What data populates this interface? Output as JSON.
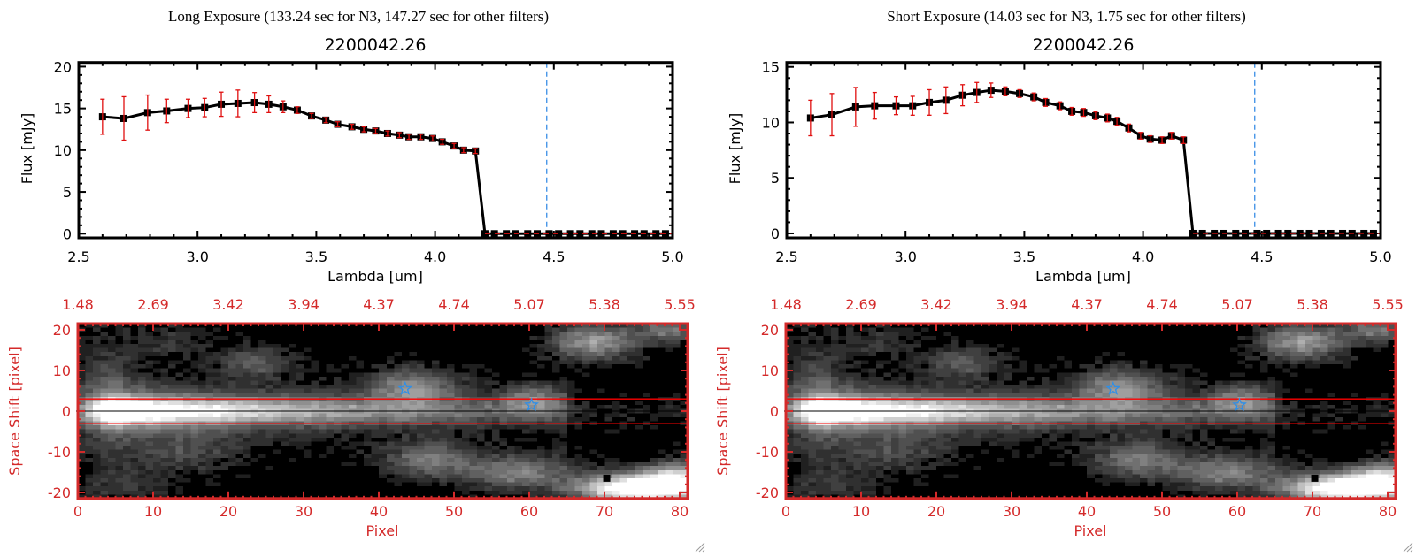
{
  "chart_data": [
    {
      "type": "line",
      "title": "Long Exposure (133.24 sec for N3, 147.27 sec for other filters)",
      "subtitle": "2200042.26",
      "xlabel": "Lambda [um]",
      "ylabel": "Flux [mJy]",
      "xlim": [
        2.5,
        5.0
      ],
      "ylim": [
        -0.5,
        20.5
      ],
      "x_ticks": [
        "2.5",
        "3.0",
        "3.5",
        "4.0",
        "4.5",
        "5.0"
      ],
      "y_ticks": [
        "0",
        "5",
        "10",
        "15",
        "20"
      ],
      "x": [
        2.6,
        2.69,
        2.79,
        2.87,
        2.96,
        3.03,
        3.1,
        3.17,
        3.24,
        3.3,
        3.36,
        3.42,
        3.48,
        3.54,
        3.59,
        3.65,
        3.7,
        3.75,
        3.8,
        3.85,
        3.89,
        3.94,
        3.99,
        4.03,
        4.08,
        4.12,
        4.17,
        4.21,
        4.25,
        4.3,
        4.34,
        4.39,
        4.43,
        4.48,
        4.52,
        4.57,
        4.61,
        4.66,
        4.7,
        4.75,
        4.79,
        4.84,
        4.88,
        4.93,
        4.97
      ],
      "series": [
        {
          "values": [
            14.0,
            13.8,
            14.5,
            14.7,
            15.0,
            15.1,
            15.5,
            15.6,
            15.7,
            15.5,
            15.2,
            14.8,
            14.1,
            13.6,
            13.1,
            12.8,
            12.5,
            12.3,
            12.0,
            11.8,
            11.6,
            11.6,
            11.4,
            11.0,
            10.5,
            10.0,
            9.9,
            0,
            0,
            0,
            0,
            0,
            0,
            0,
            0,
            0,
            0,
            0,
            0,
            0,
            0,
            0,
            0,
            0,
            0
          ],
          "errors": [
            2.1,
            2.6,
            2.1,
            1.4,
            1.1,
            1.1,
            1.45,
            1.6,
            1.2,
            1.0,
            0.7,
            0.4,
            0.3,
            0.3,
            0.3,
            0.3,
            0.3,
            0.3,
            0.3,
            0.3,
            0.3,
            0.3,
            0.3,
            0.3,
            0.3,
            0.3,
            0.3,
            0,
            0,
            0,
            0,
            0,
            0,
            0,
            0,
            0,
            0,
            0,
            0,
            0,
            0,
            0,
            0,
            0,
            0
          ]
        }
      ],
      "vline": 4.47,
      "hline": 0,
      "colors": {
        "line": "#000000",
        "errorbar": "#e01010",
        "vline": "#3a8ee6",
        "hline": "#e01010"
      }
    },
    {
      "type": "line",
      "title": "Short Exposure (14.03 sec for N3, 1.75 sec for other filters)",
      "subtitle": "2200042.26",
      "xlabel": "Lambda [um]",
      "ylabel": "Flux [mJy]",
      "xlim": [
        2.5,
        5.0
      ],
      "ylim": [
        -0.4,
        15.4
      ],
      "x_ticks": [
        "2.5",
        "3.0",
        "3.5",
        "4.0",
        "4.5",
        "5.0"
      ],
      "y_ticks": [
        "0",
        "5",
        "10",
        "15"
      ],
      "x": [
        2.6,
        2.69,
        2.79,
        2.87,
        2.96,
        3.03,
        3.1,
        3.17,
        3.24,
        3.3,
        3.36,
        3.42,
        3.48,
        3.54,
        3.59,
        3.65,
        3.7,
        3.75,
        3.8,
        3.85,
        3.89,
        3.94,
        3.99,
        4.03,
        4.08,
        4.12,
        4.17,
        4.21,
        4.25,
        4.3,
        4.34,
        4.39,
        4.43,
        4.48,
        4.52,
        4.57,
        4.61,
        4.66,
        4.7,
        4.75,
        4.79,
        4.84,
        4.88,
        4.93,
        4.97
      ],
      "series": [
        {
          "values": [
            10.4,
            10.7,
            11.4,
            11.5,
            11.5,
            11.5,
            11.8,
            12.0,
            12.45,
            12.7,
            12.9,
            12.8,
            12.6,
            12.3,
            11.8,
            11.5,
            11.0,
            10.9,
            10.6,
            10.4,
            10.1,
            9.5,
            8.8,
            8.5,
            8.4,
            8.8,
            8.4,
            0,
            0,
            0,
            0,
            0,
            0,
            0,
            0,
            0,
            0,
            0,
            0,
            0,
            0,
            0,
            0,
            0,
            0
          ],
          "errors": [
            1.6,
            1.9,
            1.75,
            1.2,
            0.8,
            0.85,
            1.15,
            1.2,
            0.95,
            0.9,
            0.65,
            0.4,
            0.35,
            0.35,
            0.35,
            0.35,
            0.35,
            0.35,
            0.35,
            0.35,
            0.35,
            0.35,
            0.3,
            0.3,
            0.3,
            0.3,
            0.3,
            0,
            0,
            0,
            0,
            0,
            0,
            0,
            0,
            0,
            0,
            0,
            0,
            0,
            0,
            0,
            0,
            0,
            0
          ]
        }
      ],
      "vline": 4.47,
      "hline": 0,
      "colors": {
        "line": "#000000",
        "errorbar": "#e01010",
        "vline": "#3a8ee6",
        "hline": "#e01010"
      }
    },
    {
      "type": "heatmap",
      "xlabel": "Pixel",
      "ylabel": "Space Shift [pixel]",
      "xlim": [
        0,
        81
      ],
      "ylim": [
        -21.5,
        21.5
      ],
      "x_ticks": [
        "0",
        "10",
        "20",
        "30",
        "40",
        "50",
        "60",
        "70",
        "80"
      ],
      "top_ticks": [
        "1.48",
        "2.69",
        "3.42",
        "3.94",
        "4.37",
        "4.74",
        "5.07",
        "5.38",
        "5.55"
      ],
      "y_ticks": [
        "20",
        "10",
        "0",
        "-10",
        "-20"
      ],
      "aperture": [
        -3,
        3
      ],
      "center": 0,
      "star_markers": [
        [
          43.5,
          5.5
        ],
        [
          60.3,
          1.5
        ]
      ],
      "square_marker": [
        70.3,
        -16.5
      ],
      "colormap": "grayscale",
      "colors": {
        "axes": "#d42a2a",
        "aperture": "#ff0000",
        "center": "#000000",
        "stars": "#2e8fe8"
      }
    },
    {
      "type": "heatmap",
      "xlabel": "Pixel",
      "ylabel": "Space Shift [pixel]",
      "xlim": [
        0,
        81
      ],
      "ylim": [
        -21.5,
        21.5
      ],
      "x_ticks": [
        "0",
        "10",
        "20",
        "30",
        "40",
        "50",
        "60",
        "70",
        "80"
      ],
      "top_ticks": [
        "1.48",
        "2.69",
        "3.42",
        "3.94",
        "4.37",
        "4.74",
        "5.07",
        "5.38",
        "5.55"
      ],
      "y_ticks": [
        "20",
        "10",
        "0",
        "-10",
        "-20"
      ],
      "aperture": [
        -3,
        3
      ],
      "center": 0,
      "star_markers": [
        [
          43.5,
          5.5
        ],
        [
          60.3,
          1.5
        ]
      ],
      "square_marker": [
        70.3,
        -16.5
      ],
      "colormap": "grayscale",
      "colors": {
        "axes": "#d42a2a",
        "aperture": "#ff0000",
        "center": "#000000",
        "stars": "#2e8fe8"
      }
    }
  ]
}
